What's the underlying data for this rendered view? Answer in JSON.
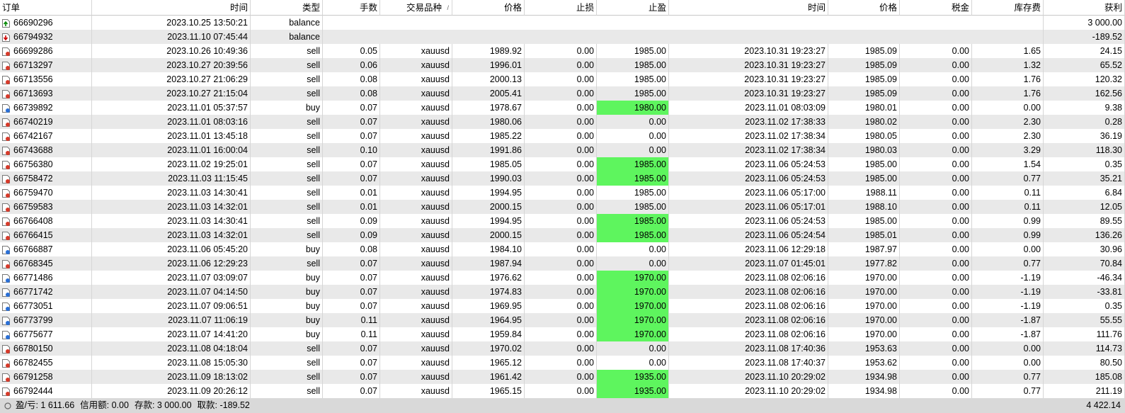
{
  "table": {
    "columns": [
      "订单",
      "时间",
      "类型",
      "手数",
      "交易品种",
      "价格",
      "止损",
      "止盈",
      "时间",
      "价格",
      "税金",
      "库存费",
      "获利"
    ],
    "rows": [
      {
        "cells": [
          "66690296",
          "2023.10.25 13:50:21",
          "balance",
          "3 000.00"
        ]
      },
      {
        "cells": [
          "66794932",
          "2023.11.10 07:45:44",
          "balance",
          "-189.52"
        ]
      },
      {
        "cells": [
          "66699286",
          "2023.10.26 10:49:36",
          "sell",
          "0.05",
          "xauusd",
          "1989.92",
          "0.00",
          "1985.00",
          "2023.10.31 19:23:27",
          "1985.09",
          "0.00",
          "1.65",
          "24.15"
        ]
      },
      {
        "cells": [
          "66713297",
          "2023.10.27 20:39:56",
          "sell",
          "0.06",
          "xauusd",
          "1996.01",
          "0.00",
          "1985.00",
          "2023.10.31 19:23:27",
          "1985.09",
          "0.00",
          "1.32",
          "65.52"
        ]
      },
      {
        "cells": [
          "66713556",
          "2023.10.27 21:06:29",
          "sell",
          "0.08",
          "xauusd",
          "2000.13",
          "0.00",
          "1985.00",
          "2023.10.31 19:23:27",
          "1985.09",
          "0.00",
          "1.76",
          "120.32"
        ]
      },
      {
        "cells": [
          "66713693",
          "2023.10.27 21:15:04",
          "sell",
          "0.08",
          "xauusd",
          "2005.41",
          "0.00",
          "1985.00",
          "2023.10.31 19:23:27",
          "1985.09",
          "0.00",
          "1.76",
          "162.56"
        ]
      },
      {
        "cells": [
          "66739892",
          "2023.11.01 05:37:57",
          "buy",
          "0.07",
          "xauusd",
          "1978.67",
          "0.00",
          "1980.00",
          "2023.11.01 08:03:09",
          "1980.01",
          "0.00",
          "0.00",
          "9.38"
        ],
        "tp_hit": true
      },
      {
        "cells": [
          "66740219",
          "2023.11.01 08:03:16",
          "sell",
          "0.07",
          "xauusd",
          "1980.06",
          "0.00",
          "0.00",
          "2023.11.02 17:38:33",
          "1980.02",
          "0.00",
          "2.30",
          "0.28"
        ]
      },
      {
        "cells": [
          "66742167",
          "2023.11.01 13:45:18",
          "sell",
          "0.07",
          "xauusd",
          "1985.22",
          "0.00",
          "0.00",
          "2023.11.02 17:38:34",
          "1980.05",
          "0.00",
          "2.30",
          "36.19"
        ]
      },
      {
        "cells": [
          "66743688",
          "2023.11.01 16:00:04",
          "sell",
          "0.10",
          "xauusd",
          "1991.86",
          "0.00",
          "0.00",
          "2023.11.02 17:38:34",
          "1980.03",
          "0.00",
          "3.29",
          "118.30"
        ]
      },
      {
        "cells": [
          "66756380",
          "2023.11.02 19:25:01",
          "sell",
          "0.07",
          "xauusd",
          "1985.05",
          "0.00",
          "1985.00",
          "2023.11.06 05:24:53",
          "1985.00",
          "0.00",
          "1.54",
          "0.35"
        ],
        "tp_hit": true
      },
      {
        "cells": [
          "66758472",
          "2023.11.03 11:15:45",
          "sell",
          "0.07",
          "xauusd",
          "1990.03",
          "0.00",
          "1985.00",
          "2023.11.06 05:24:53",
          "1985.00",
          "0.00",
          "0.77",
          "35.21"
        ],
        "tp_hit": true
      },
      {
        "cells": [
          "66759470",
          "2023.11.03 14:30:41",
          "sell",
          "0.01",
          "xauusd",
          "1994.95",
          "0.00",
          "1985.00",
          "2023.11.06 05:17:00",
          "1988.11",
          "0.00",
          "0.11",
          "6.84"
        ]
      },
      {
        "cells": [
          "66759583",
          "2023.11.03 14:32:01",
          "sell",
          "0.01",
          "xauusd",
          "2000.15",
          "0.00",
          "1985.00",
          "2023.11.06 05:17:01",
          "1988.10",
          "0.00",
          "0.11",
          "12.05"
        ]
      },
      {
        "cells": [
          "66766408",
          "2023.11.03 14:30:41",
          "sell",
          "0.09",
          "xauusd",
          "1994.95",
          "0.00",
          "1985.00",
          "2023.11.06 05:24:53",
          "1985.00",
          "0.00",
          "0.99",
          "89.55"
        ],
        "tp_hit": true
      },
      {
        "cells": [
          "66766415",
          "2023.11.03 14:32:01",
          "sell",
          "0.09",
          "xauusd",
          "2000.15",
          "0.00",
          "1985.00",
          "2023.11.06 05:24:54",
          "1985.01",
          "0.00",
          "0.99",
          "136.26"
        ],
        "tp_hit": true
      },
      {
        "cells": [
          "66766887",
          "2023.11.06 05:45:20",
          "buy",
          "0.08",
          "xauusd",
          "1984.10",
          "0.00",
          "0.00",
          "2023.11.06 12:29:18",
          "1987.97",
          "0.00",
          "0.00",
          "30.96"
        ]
      },
      {
        "cells": [
          "66768345",
          "2023.11.06 12:29:23",
          "sell",
          "0.07",
          "xauusd",
          "1987.94",
          "0.00",
          "0.00",
          "2023.11.07 01:45:01",
          "1977.82",
          "0.00",
          "0.77",
          "70.84"
        ]
      },
      {
        "cells": [
          "66771486",
          "2023.11.07 03:09:07",
          "buy",
          "0.07",
          "xauusd",
          "1976.62",
          "0.00",
          "1970.00",
          "2023.11.08 02:06:16",
          "1970.00",
          "0.00",
          "-1.19",
          "-46.34"
        ],
        "tp_hit": true
      },
      {
        "cells": [
          "66771742",
          "2023.11.07 04:14:50",
          "buy",
          "0.07",
          "xauusd",
          "1974.83",
          "0.00",
          "1970.00",
          "2023.11.08 02:06:16",
          "1970.00",
          "0.00",
          "-1.19",
          "-33.81"
        ],
        "tp_hit": true
      },
      {
        "cells": [
          "66773051",
          "2023.11.07 09:06:51",
          "buy",
          "0.07",
          "xauusd",
          "1969.95",
          "0.00",
          "1970.00",
          "2023.11.08 02:06:16",
          "1970.00",
          "0.00",
          "-1.19",
          "0.35"
        ],
        "tp_hit": true
      },
      {
        "cells": [
          "66773799",
          "2023.11.07 11:06:19",
          "buy",
          "0.11",
          "xauusd",
          "1964.95",
          "0.00",
          "1970.00",
          "2023.11.08 02:06:16",
          "1970.00",
          "0.00",
          "-1.87",
          "55.55"
        ],
        "tp_hit": true
      },
      {
        "cells": [
          "66775677",
          "2023.11.07 14:41:20",
          "buy",
          "0.11",
          "xauusd",
          "1959.84",
          "0.00",
          "1970.00",
          "2023.11.08 02:06:16",
          "1970.00",
          "0.00",
          "-1.87",
          "111.76"
        ],
        "tp_hit": true
      },
      {
        "cells": [
          "66780150",
          "2023.11.08 04:18:04",
          "sell",
          "0.07",
          "xauusd",
          "1970.02",
          "0.00",
          "0.00",
          "2023.11.08 17:40:36",
          "1953.63",
          "0.00",
          "0.00",
          "114.73"
        ]
      },
      {
        "cells": [
          "66782455",
          "2023.11.08 15:05:30",
          "sell",
          "0.07",
          "xauusd",
          "1965.12",
          "0.00",
          "0.00",
          "2023.11.08 17:40:37",
          "1953.62",
          "0.00",
          "0.00",
          "80.50"
        ]
      },
      {
        "cells": [
          "66791258",
          "2023.11.09 18:13:02",
          "sell",
          "0.07",
          "xauusd",
          "1961.42",
          "0.00",
          "1935.00",
          "2023.11.10 20:29:02",
          "1934.98",
          "0.00",
          "0.77",
          "185.08"
        ],
        "tp_hit": true
      },
      {
        "cells": [
          "66792444",
          "2023.11.09 20:26:12",
          "sell",
          "0.07",
          "xauusd",
          "1965.15",
          "0.00",
          "1935.00",
          "2023.11.10 20:29:02",
          "1934.98",
          "0.00",
          "0.77",
          "211.19"
        ],
        "tp_hit": true
      }
    ]
  },
  "footer": {
    "items": [
      "盈/亏: 1 611.66",
      "信用额: 0.00",
      "存款: 3 000.00",
      "取款: -189.52"
    ],
    "total": "4 422.14"
  }
}
